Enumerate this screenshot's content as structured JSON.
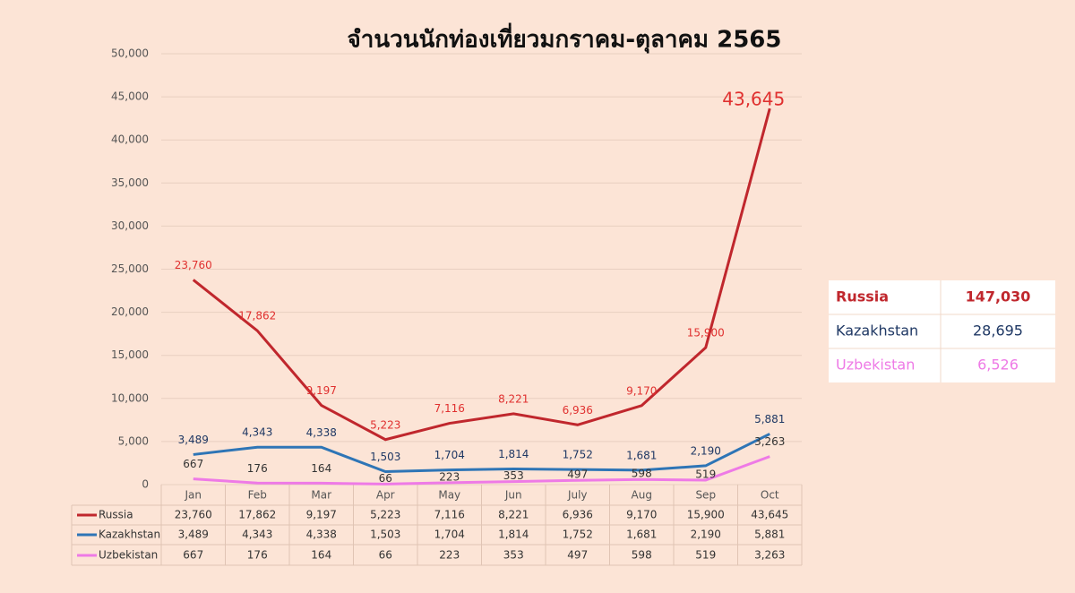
{
  "chart_data": {
    "type": "line",
    "title": "จำนวนนักท่องเที่ยวมกราคม-ตุลาคม 2565",
    "categories": [
      "Jan",
      "Feb",
      "Mar",
      "Apr",
      "May",
      "Jun",
      "July",
      "Aug",
      "Sep",
      "Oct"
    ],
    "series": [
      {
        "name": "Russia",
        "color": "#c0272d",
        "values": [
          23760,
          17862,
          9197,
          5223,
          7116,
          8221,
          6936,
          9170,
          15900,
          43645
        ],
        "value_labels": [
          "23,760",
          "17,862",
          "9,197",
          "5,223",
          "7,116",
          "8,221",
          "6,936",
          "9,170",
          "15,900",
          "43,645"
        ]
      },
      {
        "name": "Kazakhstan",
        "color": "#2e75b6",
        "values": [
          3489,
          4343,
          4338,
          1503,
          1704,
          1814,
          1752,
          1681,
          2190,
          5881
        ],
        "value_labels": [
          "3,489",
          "4,343",
          "4,338",
          "1,503",
          "1,704",
          "1,814",
          "1,752",
          "1,681",
          "2,190",
          "5,881"
        ]
      },
      {
        "name": "Uzbekistan",
        "color": "#ee7ae6",
        "values": [
          667,
          176,
          164,
          66,
          223,
          353,
          497,
          598,
          519,
          3263
        ],
        "value_labels": [
          "667",
          "176",
          "164",
          "66",
          "223",
          "353",
          "497",
          "598",
          "519",
          "3,263"
        ]
      }
    ],
    "ylim": [
      0,
      50000
    ],
    "yticks": [
      0,
      {
        "value": 5000,
        "label": "5,000"
      },
      {
        "value": 10000,
        "label": "10,000"
      },
      {
        "value": 15000,
        "label": "15,000"
      },
      {
        "value": 20000,
        "label": "20,000"
      },
      {
        "value": 25000,
        "label": "25,000"
      },
      {
        "value": 30000,
        "label": "30,000"
      },
      {
        "value": 35000,
        "label": "35,000"
      },
      {
        "value": 40000,
        "label": "40,000"
      },
      {
        "value": 45000,
        "label": "45,000"
      },
      {
        "value": 50000,
        "label": "50,000"
      }
    ],
    "grid": true,
    "data_table": true,
    "summary": [
      [
        "Russia",
        "147,030"
      ],
      [
        "Kazakhstan",
        "28,695"
      ],
      [
        "Uzbekistan",
        "6,526"
      ]
    ]
  }
}
